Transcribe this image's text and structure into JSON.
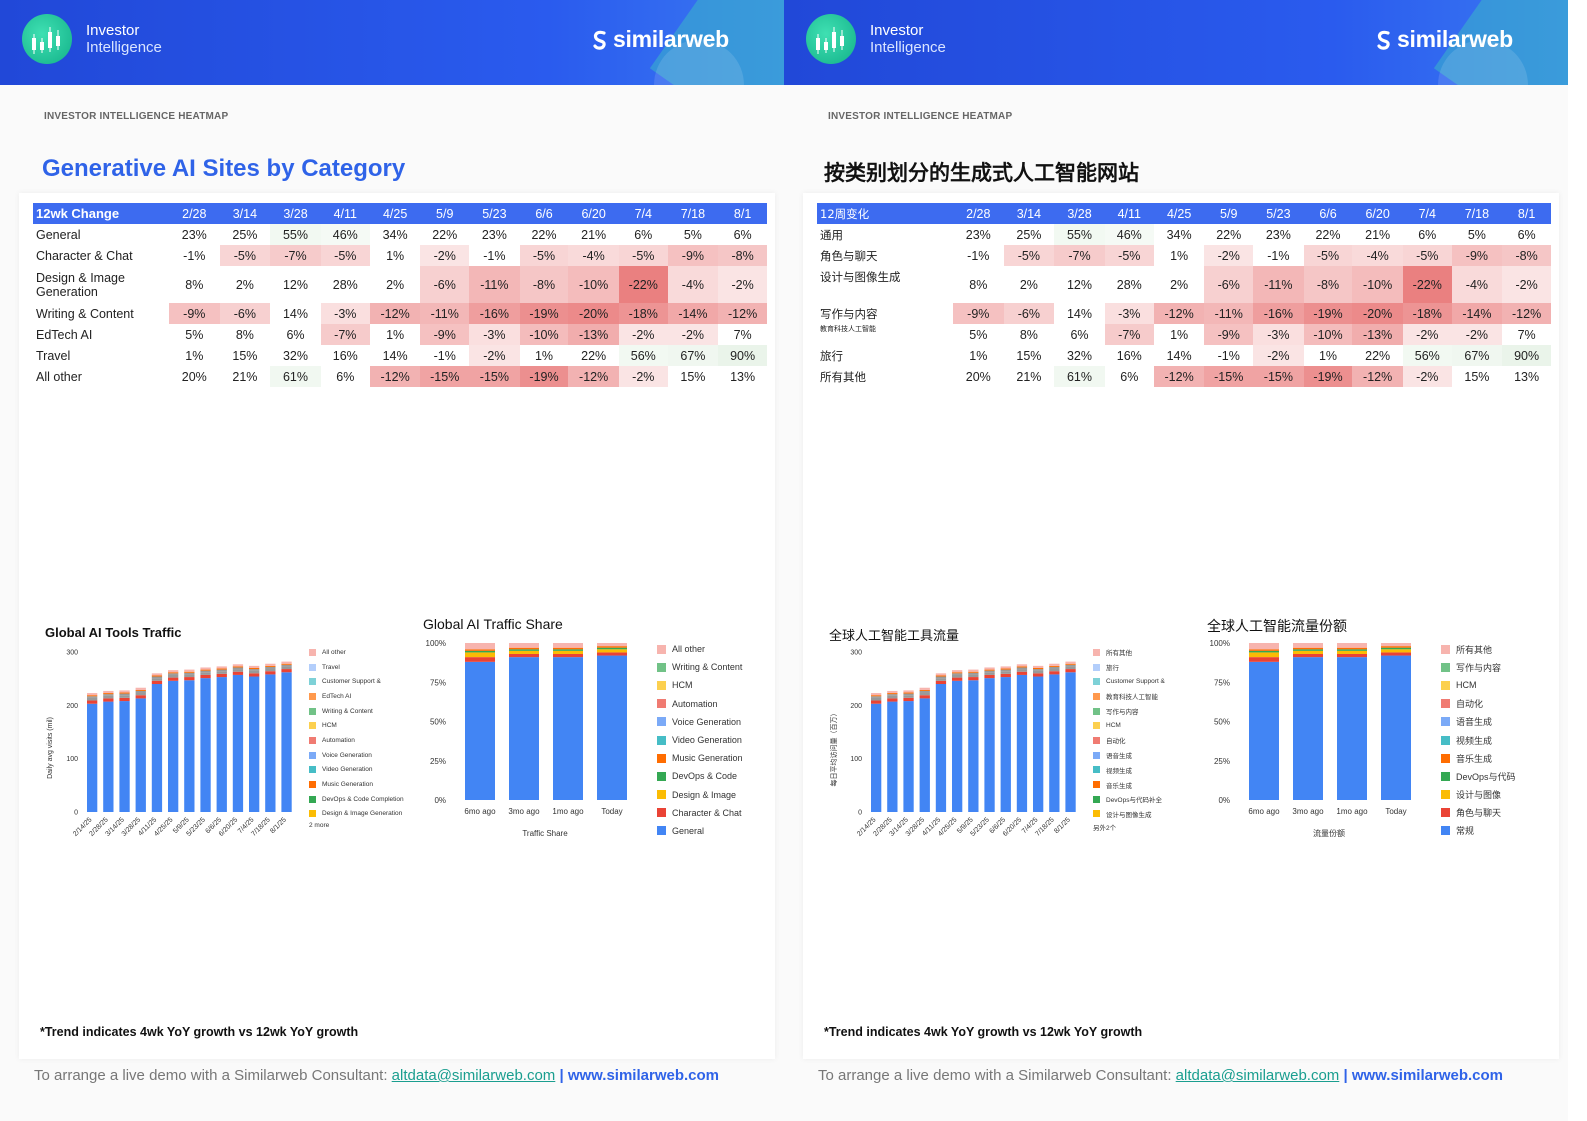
{
  "colors": {
    "banner": "#2148d8",
    "accent": "#2f63e8",
    "header_row": "#3d6bf0",
    "link": "#1a9e8f"
  },
  "series_colors": {
    "General": "#4285f4",
    "Character & Chat": "#ea4335",
    "Design & Image": "#fbbc04",
    "DevOps & Code": "#34a853",
    "Music Generation": "#ff6d01",
    "Video Generation": "#46bdc6",
    "Voice Generation": "#7baaf7",
    "Automation": "#f07b72",
    "HCM": "#fcd04f",
    "Writing & Content": "#71c287",
    "EdTech AI": "#ff994d",
    "Customer Support": "#7ed1d7",
    "Travel": "#b3cefb",
    "All other": "#f7b4ae"
  },
  "pages": [
    {
      "brand_title": "Investor",
      "brand_sub": "Intelligence",
      "logo": "similarweb",
      "kicker": "INVESTOR INTELLIGENCE HEATMAP",
      "title": "Generative AI Sites by Category",
      "table": {
        "header": [
          "12wk Change",
          "2/28",
          "3/14",
          "3/28",
          "4/11",
          "4/25",
          "5/9",
          "5/23",
          "6/6",
          "6/20",
          "7/4",
          "7/18",
          "8/1"
        ],
        "rows": [
          {
            "label": "General",
            "values": [
              "23%",
              "25%",
              "55%",
              "46%",
              "34%",
              "22%",
              "23%",
              "22%",
              "21%",
              "6%",
              "5%",
              "6%"
            ]
          },
          {
            "label": "Character & Chat",
            "values": [
              "-1%",
              "-5%",
              "-7%",
              "-5%",
              "1%",
              "-2%",
              "-1%",
              "-5%",
              "-4%",
              "-5%",
              "-9%",
              "-8%"
            ]
          },
          {
            "label": "Design & Image Generation",
            "values": [
              "8%",
              "2%",
              "12%",
              "28%",
              "2%",
              "-6%",
              "-11%",
              "-8%",
              "-10%",
              "-22%",
              "-4%",
              "-2%"
            ]
          },
          {
            "label": "Writing & Content",
            "values": [
              "-9%",
              "-6%",
              "14%",
              "-3%",
              "-12%",
              "-11%",
              "-16%",
              "-19%",
              "-20%",
              "-18%",
              "-14%",
              "-12%"
            ]
          },
          {
            "label": "EdTech AI",
            "values": [
              "5%",
              "8%",
              "6%",
              "-7%",
              "1%",
              "-9%",
              "-3%",
              "-10%",
              "-13%",
              "-2%",
              "-2%",
              "7%"
            ]
          },
          {
            "label": "Travel",
            "values": [
              "1%",
              "15%",
              "32%",
              "16%",
              "14%",
              "-1%",
              "-2%",
              "1%",
              "22%",
              "56%",
              "67%",
              "90%"
            ]
          },
          {
            "label": "All other",
            "values": [
              "20%",
              "21%",
              "61%",
              "6%",
              "-12%",
              "-15%",
              "-15%",
              "-19%",
              "-12%",
              "-2%",
              "15%",
              "13%"
            ]
          }
        ]
      },
      "chart1": {
        "title": "Global AI Tools Traffic",
        "ylabel": "Daily avg visits (mil)",
        "legend": [
          "All other",
          "Travel",
          "Customer Support &",
          "EdTech AI",
          "Writing & Content",
          "HCM",
          "Automation",
          "Voice Generation",
          "Video Generation",
          "Music Generation",
          "DevOps & Code Completion",
          "Design & Image Generation"
        ],
        "legend_more": "2 more"
      },
      "chart2": {
        "title": "Global AI Traffic Share",
        "xlabel": "Traffic Share",
        "legend": [
          "All other",
          "Writing & Content",
          "HCM",
          "Automation",
          "Voice Generation",
          "Video Generation",
          "Music Generation",
          "DevOps & Code",
          "Design & Image",
          "Character & Chat",
          "General"
        ]
      },
      "footnote": "*Trend indicates 4wk YoY growth vs 12wk YoY growth",
      "contact": {
        "prefix": "To arrange a live demo with a Similarweb Consultant: ",
        "email": "altdata@similarweb.com",
        "sep": " | ",
        "web": "www.similarweb.com"
      }
    },
    {
      "brand_title": "Investor",
      "brand_sub": "Intelligence",
      "logo": "similarweb",
      "kicker": "INVESTOR INTELLIGENCE HEATMAP",
      "title": "按类别划分的生成式人工智能网站",
      "table": {
        "header": [
          "12周变化",
          "2/28",
          "3/14",
          "3/28",
          "4/11",
          "4/25",
          "5/9",
          "5/23",
          "6/6",
          "6/20",
          "7/4",
          "7/18",
          "8/1"
        ],
        "rows": [
          {
            "label": "通用",
            "values": [
              "23%",
              "25%",
              "55%",
              "46%",
              "34%",
              "22%",
              "23%",
              "22%",
              "21%",
              "6%",
              "5%",
              "6%"
            ]
          },
          {
            "label": "角色与聊天",
            "values": [
              "-1%",
              "-5%",
              "-7%",
              "-5%",
              "1%",
              "-2%",
              "-1%",
              "-5%",
              "-4%",
              "-5%",
              "-9%",
              "-8%"
            ]
          },
          {
            "label": "设计与图像生成",
            "values": [
              "8%",
              "2%",
              "12%",
              "28%",
              "2%",
              "-6%",
              "-11%",
              "-8%",
              "-10%",
              "-22%",
              "-4%",
              "-2%"
            ]
          },
          {
            "label": "写作与内容",
            "values": [
              "-9%",
              "-6%",
              "14%",
              "-3%",
              "-12%",
              "-11%",
              "-16%",
              "-19%",
              "-20%",
              "-18%",
              "-14%",
              "-12%"
            ]
          },
          {
            "label": "教育科技人工智能",
            "values": [
              "5%",
              "8%",
              "6%",
              "-7%",
              "1%",
              "-9%",
              "-3%",
              "-10%",
              "-13%",
              "-2%",
              "-2%",
              "7%"
            ]
          },
          {
            "label": "旅行",
            "values": [
              "1%",
              "15%",
              "32%",
              "16%",
              "14%",
              "-1%",
              "-2%",
              "1%",
              "22%",
              "56%",
              "67%",
              "90%"
            ]
          },
          {
            "label": "所有其他",
            "values": [
              "20%",
              "21%",
              "61%",
              "6%",
              "-12%",
              "-15%",
              "-15%",
              "-19%",
              "-12%",
              "-2%",
              "15%",
              "13%"
            ]
          }
        ]
      },
      "chart1": {
        "title": "全球人工智能工具流量",
        "ylabel": "每日平均访问量（百万）",
        "legend": [
          "所有其他",
          "旅行",
          "Customer Support &",
          "教育科技人工智能",
          "写作与内容",
          "HCM",
          "自动化",
          "语音生成",
          "视频生成",
          "音乐生成",
          "DevOps与代码补全",
          "设计与图像生成"
        ],
        "legend_more": "另外2个"
      },
      "chart2": {
        "title": "全球人工智能流量份额",
        "xlabel": "流量份额",
        "legend": [
          "所有其他",
          "写作与内容",
          "HCM",
          "自动化",
          "语音生成",
          "视频生成",
          "音乐生成",
          "DevOps与代码",
          "设计与图像",
          "角色与聊天",
          "常规"
        ]
      },
      "footnote": "*Trend indicates 4wk YoY growth vs 12wk YoY growth",
      "contact": {
        "prefix": "To arrange a live demo with a Similarweb Consultant: ",
        "email": "altdata@similarweb.com",
        "sep": " | ",
        "web": "www.similarweb.com"
      }
    }
  ],
  "chart_data": [
    {
      "type": "bar",
      "stacked": true,
      "title": "Global AI Tools Traffic",
      "ylabel": "Daily avg visits (mil)",
      "ylim": [
        0,
        300
      ],
      "yticks": [
        0,
        100,
        200,
        300
      ],
      "categories": [
        "2/14/25",
        "2/28/25",
        "3/14/25",
        "3/28/25",
        "4/11/25",
        "4/25/25",
        "5/9/25",
        "5/23/25",
        "6/6/25",
        "6/20/25",
        "7/4/25",
        "7/18/25",
        "8/1/25"
      ],
      "series": [
        {
          "name": "General",
          "values": [
            203,
            207,
            208,
            213,
            240,
            246,
            247,
            251,
            253,
            257,
            254,
            258,
            262
          ]
        },
        {
          "name": "Character & Chat",
          "values": [
            6,
            6,
            6,
            6,
            6,
            6,
            6,
            6,
            6,
            6,
            6,
            6,
            6
          ]
        },
        {
          "name": "Design & Image Generation",
          "values": [
            5,
            5,
            5,
            5,
            5,
            5,
            5,
            5,
            5,
            5,
            5,
            5,
            5
          ]
        },
        {
          "name": "DevOps & Code Completion",
          "values": [
            3,
            3,
            3,
            3,
            3,
            3,
            3,
            3,
            3,
            3,
            3,
            3,
            3
          ]
        },
        {
          "name": "Music Generation",
          "values": [
            2,
            2,
            2,
            2,
            2,
            2,
            2,
            2,
            2,
            2,
            2,
            2,
            2
          ]
        },
        {
          "name": "All other",
          "values": [
            4,
            4,
            4,
            4,
            4,
            4,
            4,
            4,
            4,
            4,
            4,
            4,
            4
          ]
        }
      ],
      "legend_position": "right",
      "grid": false
    },
    {
      "type": "bar",
      "stacked": true,
      "title": "Global AI Traffic Share",
      "xlabel": "Traffic Share",
      "ylim": [
        0,
        100
      ],
      "yticks": [
        "0%",
        "25%",
        "50%",
        "75%",
        "100%"
      ],
      "categories": [
        "6mo ago",
        "3mo ago",
        "1mo ago",
        "Today"
      ],
      "series": [
        {
          "name": "General",
          "values": [
            88,
            91,
            91,
            92
          ]
        },
        {
          "name": "Character & Chat",
          "values": [
            3,
            2,
            2,
            2
          ]
        },
        {
          "name": "Design & Image",
          "values": [
            3,
            2,
            2,
            2
          ]
        },
        {
          "name": "DevOps & Code",
          "values": [
            1,
            1,
            1,
            1
          ]
        },
        {
          "name": "Music Generation",
          "values": [
            1,
            1,
            1,
            1
          ]
        },
        {
          "name": "All other",
          "values": [
            4,
            3,
            3,
            2
          ]
        }
      ],
      "legend_position": "right",
      "grid": false
    }
  ]
}
